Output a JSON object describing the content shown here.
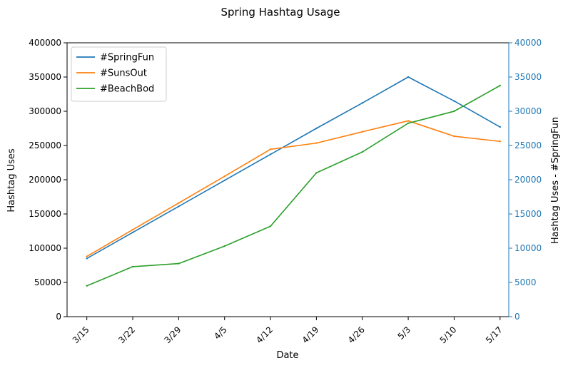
{
  "chart_data": {
    "type": "line",
    "title": "Spring Hashtag Usage",
    "xlabel": "Date",
    "ylabel": "Hashtag Uses",
    "y2label": "Hashtag Uses - #SpringFun",
    "categories": [
      "3/15",
      "3/22",
      "3/29",
      "4/5",
      "4/12",
      "4/19",
      "4/26",
      "5/3",
      "5/10",
      "5/17"
    ],
    "ylim": [
      0,
      400000
    ],
    "y2lim": [
      0,
      40000
    ],
    "yticks": [
      0,
      50000,
      100000,
      150000,
      200000,
      250000,
      300000,
      350000,
      400000
    ],
    "y2ticks": [
      0,
      5000,
      10000,
      15000,
      20000,
      25000,
      30000,
      35000,
      40000
    ],
    "grid": false,
    "legend_position": "top-left",
    "secondary_axis_color": "#1f77b4",
    "series": [
      {
        "name": "#SpringFun",
        "color": "#1f77b4",
        "axis": "right",
        "values": [
          8500,
          12300,
          16100,
          19900,
          23700,
          27500,
          31200,
          35000,
          31500,
          27700
        ]
      },
      {
        "name": "#SunsOut",
        "color": "#ff7f0e",
        "axis": "left",
        "values": [
          88000,
          127000,
          166000,
          205000,
          244500,
          253500,
          270000,
          286000,
          263500,
          256000
        ]
      },
      {
        "name": "#BeachBod",
        "color": "#2ca02c",
        "axis": "left",
        "values": [
          45000,
          73000,
          77500,
          103000,
          132000,
          210000,
          240500,
          282500,
          300000,
          337500
        ]
      }
    ]
  }
}
